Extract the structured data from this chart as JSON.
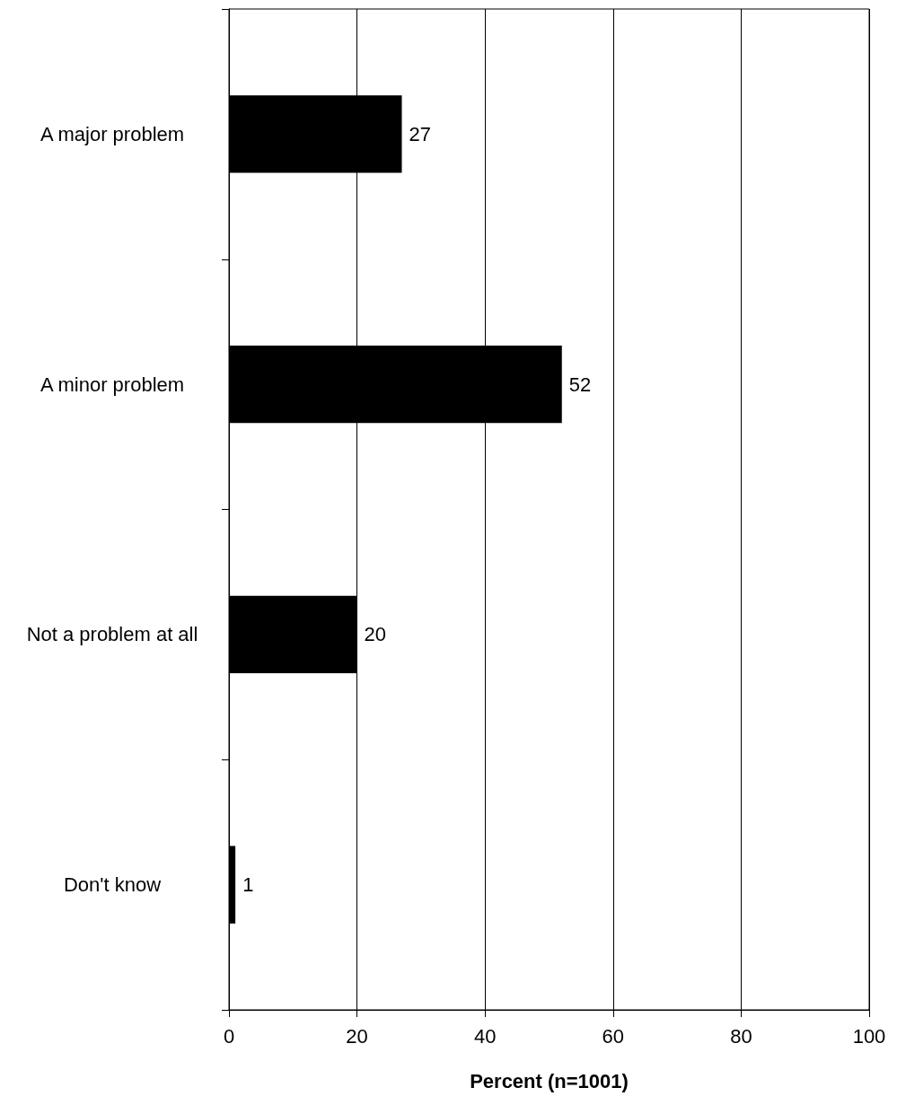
{
  "chart_data": {
    "type": "bar",
    "orientation": "horizontal",
    "xlabel": "Percent (n=1001)",
    "categories": [
      "A major problem",
      "A minor problem",
      "Not a problem at all",
      "Don't know"
    ],
    "values": [
      27,
      52,
      20,
      1
    ],
    "color": "#000000",
    "data_labels": true,
    "xlim": [
      0,
      100
    ],
    "xticks": [
      0,
      20,
      40,
      60,
      80,
      100
    ],
    "grid": "x"
  }
}
